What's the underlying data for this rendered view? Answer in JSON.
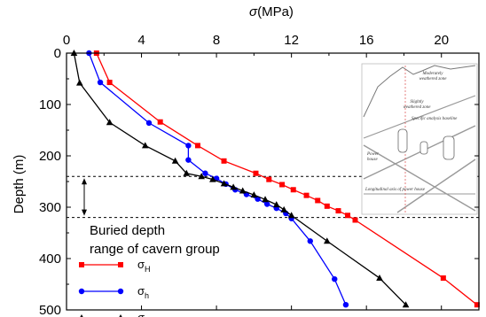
{
  "chart_data": {
    "type": "line",
    "x_axis": {
      "title_symbol": "σ",
      "title_unit": "(MPa)",
      "range": [
        0,
        22
      ],
      "ticks": [
        0,
        4,
        8,
        12,
        16,
        20
      ],
      "position": "top"
    },
    "y_axis": {
      "title": "Depth (m)",
      "range": [
        0,
        500
      ],
      "ticks": [
        0,
        100,
        200,
        300,
        400,
        500
      ],
      "inverted": true
    },
    "series": [
      {
        "name": "σH",
        "symbol": "σ",
        "subscript": "H",
        "color": "#ff0000",
        "marker": "square",
        "points": [
          {
            "x": 1.6,
            "y": 0
          },
          {
            "x": 2.3,
            "y": 57
          },
          {
            "x": 5.0,
            "y": 134
          },
          {
            "x": 7.0,
            "y": 180
          },
          {
            "x": 8.4,
            "y": 210
          },
          {
            "x": 10.1,
            "y": 234
          },
          {
            "x": 10.8,
            "y": 246
          },
          {
            "x": 11.5,
            "y": 256
          },
          {
            "x": 12.1,
            "y": 266
          },
          {
            "x": 12.8,
            "y": 277
          },
          {
            "x": 13.4,
            "y": 287
          },
          {
            "x": 13.9,
            "y": 298
          },
          {
            "x": 14.5,
            "y": 307
          },
          {
            "x": 15.0,
            "y": 316
          },
          {
            "x": 15.4,
            "y": 325
          },
          {
            "x": 20.1,
            "y": 438
          },
          {
            "x": 21.9,
            "y": 490
          }
        ]
      },
      {
        "name": "σh",
        "symbol": "σ",
        "subscript": "h",
        "color": "#0000ff",
        "marker": "circle",
        "points": [
          {
            "x": 1.2,
            "y": 0
          },
          {
            "x": 1.8,
            "y": 57
          },
          {
            "x": 4.4,
            "y": 136
          },
          {
            "x": 6.5,
            "y": 180
          },
          {
            "x": 6.5,
            "y": 208
          },
          {
            "x": 7.4,
            "y": 234
          },
          {
            "x": 8.0,
            "y": 244
          },
          {
            "x": 8.5,
            "y": 255
          },
          {
            "x": 9.0,
            "y": 266
          },
          {
            "x": 9.6,
            "y": 275
          },
          {
            "x": 10.2,
            "y": 284
          },
          {
            "x": 10.7,
            "y": 294
          },
          {
            "x": 11.2,
            "y": 302
          },
          {
            "x": 11.7,
            "y": 312
          },
          {
            "x": 12.0,
            "y": 322
          },
          {
            "x": 13.0,
            "y": 366
          },
          {
            "x": 14.3,
            "y": 440
          },
          {
            "x": 14.9,
            "y": 490
          }
        ]
      },
      {
        "name": "σV",
        "symbol": "σ",
        "subscript": "V",
        "color": "#000000",
        "marker": "triangle",
        "points": [
          {
            "x": 0.4,
            "y": 0
          },
          {
            "x": 0.7,
            "y": 58
          },
          {
            "x": 2.3,
            "y": 135
          },
          {
            "x": 4.2,
            "y": 180
          },
          {
            "x": 5.8,
            "y": 210
          },
          {
            "x": 6.4,
            "y": 234
          },
          {
            "x": 7.2,
            "y": 240
          },
          {
            "x": 7.8,
            "y": 246
          },
          {
            "x": 8.4,
            "y": 254
          },
          {
            "x": 8.9,
            "y": 261
          },
          {
            "x": 9.4,
            "y": 268
          },
          {
            "x": 10.0,
            "y": 276
          },
          {
            "x": 10.6,
            "y": 285
          },
          {
            "x": 11.2,
            "y": 295
          },
          {
            "x": 11.6,
            "y": 305
          },
          {
            "x": 12.0,
            "y": 316
          },
          {
            "x": 13.9,
            "y": 366
          },
          {
            "x": 16.7,
            "y": 438
          },
          {
            "x": 18.1,
            "y": 490
          }
        ]
      }
    ],
    "reference_lines": [
      {
        "y": 240,
        "style": "dashed"
      },
      {
        "y": 320,
        "style": "dashed"
      }
    ],
    "annotation": {
      "lines": [
        "Buried depth",
        "range of cavern group"
      ],
      "arrow": "double",
      "y_range": [
        240,
        320
      ]
    },
    "legend": {
      "position": "bottom-left",
      "order": [
        "σH",
        "σh",
        "σV"
      ]
    },
    "inset": {
      "position": "right",
      "labels": [
        "Moderately",
        "weathered zone",
        "Slightly",
        "weathered zone",
        "Specific analysis baseline",
        "Power",
        "house",
        "Longitudinal axis of power house"
      ]
    }
  }
}
